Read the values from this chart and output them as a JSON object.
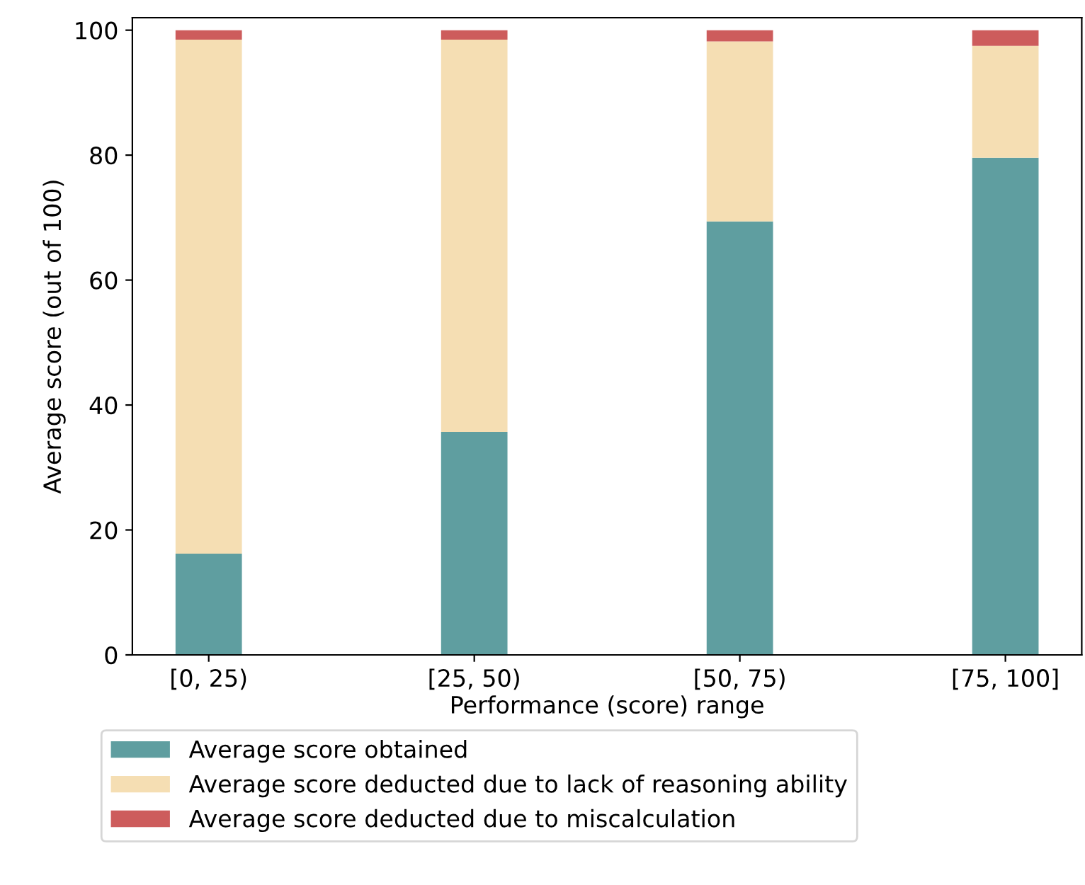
{
  "chart_data": {
    "type": "bar",
    "stacked": true,
    "xlabel": "Performance (score) range",
    "ylabel": "Average score (out of 100)",
    "categories": [
      "[0, 25)",
      "[25, 50)",
      "[50, 75)",
      "[75, 100]"
    ],
    "series": [
      {
        "name": "Average score obtained",
        "color": "#5f9ea0",
        "values": [
          16.2,
          35.7,
          69.4,
          79.6
        ]
      },
      {
        "name": "Average score deducted due to lack of reasoning ability",
        "color": "#f5deb3",
        "values": [
          82.3,
          62.8,
          28.8,
          17.9
        ]
      },
      {
        "name": "Average score deducted due to miscalculation",
        "color": "#cd5c5c",
        "values": [
          1.5,
          1.5,
          1.8,
          2.5
        ]
      }
    ],
    "ylim": [
      0,
      102
    ],
    "yticks": [
      0,
      20,
      40,
      60,
      80,
      100
    ],
    "grid": false,
    "legend": "bottom"
  }
}
